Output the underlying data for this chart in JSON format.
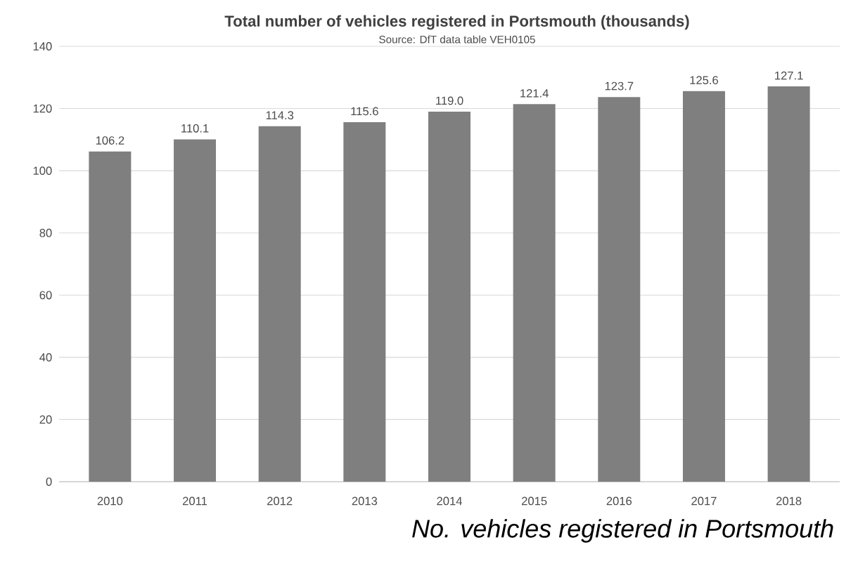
{
  "chart_data": {
    "type": "bar",
    "title": "Total number of vehicles registered in Portsmouth  (thousands)",
    "subtitle": "Source: DfT data table VEH0105",
    "categories": [
      "2010",
      "2011",
      "2012",
      "2013",
      "2014",
      "2015",
      "2016",
      "2017",
      "2018"
    ],
    "values": [
      106.2,
      110.1,
      114.3,
      115.6,
      119.0,
      121.4,
      123.7,
      125.6,
      127.1
    ],
    "value_labels": [
      "106.2",
      "110.1",
      "114.3",
      "115.6",
      "119.0",
      "121.4",
      "123.7",
      "125.6",
      "127.1"
    ],
    "color": "#7f7f7f",
    "grid": "y",
    "ylim": [
      0,
      140
    ],
    "yticks": [
      0,
      20,
      40,
      60,
      80,
      100,
      120,
      140
    ],
    "annotations": [
      "No. vehicles registered in Portsmouth"
    ]
  }
}
